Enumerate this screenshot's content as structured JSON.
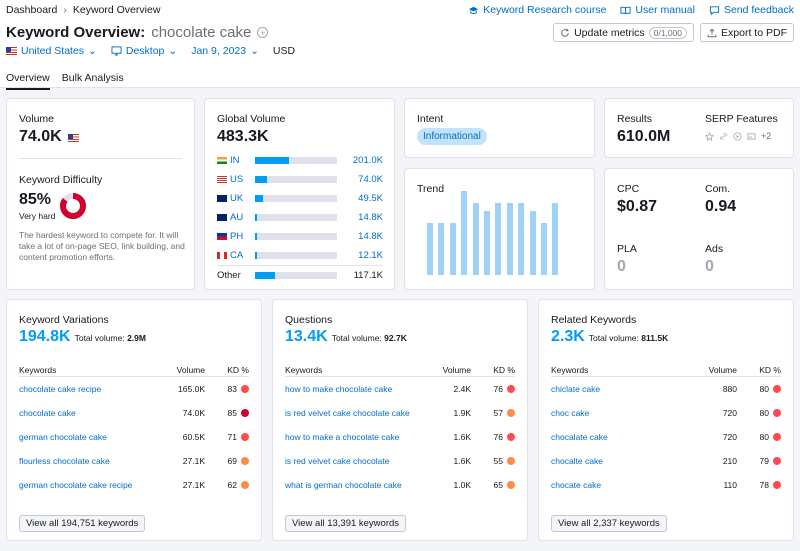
{
  "breadcrumb": {
    "root": "Dashboard",
    "current": "Keyword Overview"
  },
  "toplinks": {
    "course": "Keyword Research course",
    "manual": "User manual",
    "feedback": "Send feedback"
  },
  "header": {
    "title": "Keyword Overview:",
    "keyword": "chocolate cake",
    "plus": "+"
  },
  "filters": {
    "country": "United States",
    "device": "Desktop",
    "date": "Jan 9, 2023",
    "currency": "USD"
  },
  "buttons": {
    "update": "Update metrics",
    "update_count": "0/1,000",
    "export": "Export to PDF"
  },
  "tabs": [
    "Overview",
    "Bulk Analysis"
  ],
  "volume": {
    "label": "Volume",
    "value": "74.0K"
  },
  "kd": {
    "label": "Keyword Difficulty",
    "value": "85%",
    "level": "Very hard",
    "percent": 85,
    "desc": "The hardest keyword to compete for. It will take a lot of on-page SEO, link building, and content promotion efforts.",
    "color": "#d1002f"
  },
  "global": {
    "label": "Global Volume",
    "value": "483.3K",
    "rows": [
      {
        "cc": "IN",
        "value": "201.0K",
        "share": 0.42
      },
      {
        "cc": "US",
        "value": "74.0K",
        "share": 0.15
      },
      {
        "cc": "UK",
        "value": "49.5K",
        "share": 0.1
      },
      {
        "cc": "AU",
        "value": "14.8K",
        "share": 0.03
      },
      {
        "cc": "PH",
        "value": "14.8K",
        "share": 0.03
      },
      {
        "cc": "CA",
        "value": "12.1K",
        "share": 0.03
      }
    ],
    "other": {
      "label": "Other",
      "value": "117.1K",
      "share": 0.24
    }
  },
  "intent": {
    "label": "Intent",
    "value": "Informational"
  },
  "trend": {
    "label": "Trend",
    "values": [
      0.62,
      0.62,
      0.62,
      1.0,
      0.86,
      0.76,
      0.86,
      0.86,
      0.86,
      0.76,
      0.62,
      0.86
    ]
  },
  "results": {
    "label": "Results",
    "value": "610.0M"
  },
  "serp": {
    "label": "SERP Features",
    "more": "+2"
  },
  "cpc": {
    "label": "CPC",
    "value": "$0.87"
  },
  "com": {
    "label": "Com.",
    "value": "0.94"
  },
  "pla": {
    "label": "PLA",
    "value": "0"
  },
  "ads": {
    "label": "Ads",
    "value": "0"
  },
  "headers": {
    "kw": "Keywords",
    "vol": "Volume",
    "kd": "KD %"
  },
  "variations": {
    "title": "Keyword Variations",
    "count": "194.8K",
    "total_label": "Total volume:",
    "total": "2.9M",
    "view": "View all 194,751 keywords",
    "rows": [
      {
        "kw": "chocolate cake recipe",
        "vol": "165.0K",
        "kd": "83",
        "color": "#ff4953"
      },
      {
        "kw": "chocolate cake",
        "vol": "74.0K",
        "kd": "85",
        "color": "#d1002f"
      },
      {
        "kw": "german chocolate cake",
        "vol": "60.5K",
        "kd": "71",
        "color": "#ff4953"
      },
      {
        "kw": "flourless chocolate cake",
        "vol": "27.1K",
        "kd": "69",
        "color": "#ff8c43"
      },
      {
        "kw": "german chocolate cake recipe",
        "vol": "27.1K",
        "kd": "62",
        "color": "#ff8c43"
      }
    ]
  },
  "questions": {
    "title": "Questions",
    "count": "13.4K",
    "total_label": "Total volume:",
    "total": "92.7K",
    "view": "View all 13,391 keywords",
    "rows": [
      {
        "kw": "how to make chocolate cake",
        "vol": "2.4K",
        "kd": "76",
        "color": "#ff4953"
      },
      {
        "kw": "is red velvet cake chocolate cake",
        "vol": "1.9K",
        "kd": "57",
        "color": "#ff8c43"
      },
      {
        "kw": "how to make a chocolate cake",
        "vol": "1.6K",
        "kd": "76",
        "color": "#ff4953"
      },
      {
        "kw": "is red velvet cake chocolate",
        "vol": "1.6K",
        "kd": "55",
        "color": "#ff8c43"
      },
      {
        "kw": "what is german chocolate cake",
        "vol": "1.0K",
        "kd": "65",
        "color": "#ff8c43"
      }
    ]
  },
  "related": {
    "title": "Related Keywords",
    "count": "2.3K",
    "total_label": "Total volume:",
    "total": "811.5K",
    "view": "View all 2,337 keywords",
    "rows": [
      {
        "kw": "chiclate cake",
        "vol": "880",
        "kd": "80",
        "color": "#ff4953"
      },
      {
        "kw": "choc cake",
        "vol": "720",
        "kd": "80",
        "color": "#ff4953"
      },
      {
        "kw": "chocalate cake",
        "vol": "720",
        "kd": "80",
        "color": "#ff4953"
      },
      {
        "kw": "chocalte cake",
        "vol": "210",
        "kd": "79",
        "color": "#ff4953"
      },
      {
        "kw": "chocate cake",
        "vol": "110",
        "kd": "78",
        "color": "#ff4953"
      }
    ]
  }
}
